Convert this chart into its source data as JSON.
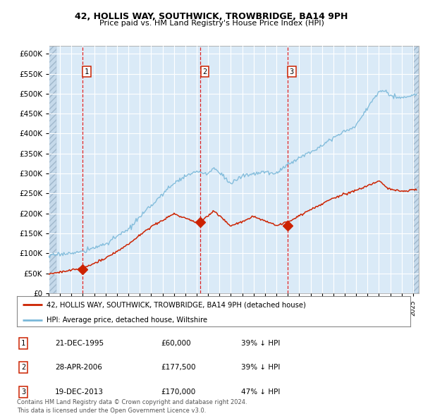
{
  "title1": "42, HOLLIS WAY, SOUTHWICK, TROWBRIDGE, BA14 9PH",
  "title2": "Price paid vs. HM Land Registry's House Price Index (HPI)",
  "xlim_start": 1993.0,
  "xlim_end": 2025.5,
  "ylim": [
    0,
    620000
  ],
  "yticks": [
    0,
    50000,
    100000,
    150000,
    200000,
    250000,
    300000,
    350000,
    400000,
    450000,
    500000,
    550000,
    600000
  ],
  "ytick_labels": [
    "£0",
    "£50K",
    "£100K",
    "£150K",
    "£200K",
    "£250K",
    "£300K",
    "£350K",
    "£400K",
    "£450K",
    "£500K",
    "£550K",
    "£600K"
  ],
  "hpi_color": "#7ab8d9",
  "price_color": "#cc2200",
  "background_color": "#ffffff",
  "plot_bg_color": "#daeaf7",
  "grid_color": "#ffffff",
  "sale_dates": [
    1995.97,
    2006.33,
    2013.97
  ],
  "sale_prices": [
    60000,
    177500,
    170000
  ],
  "sale_labels": [
    "1",
    "2",
    "3"
  ],
  "legend_line1": "42, HOLLIS WAY, SOUTHWICK, TROWBRIDGE, BA14 9PH (detached house)",
  "legend_line2": "HPI: Average price, detached house, Wiltshire",
  "table_data": [
    [
      "1",
      "21-DEC-1995",
      "£60,000",
      "39% ↓ HPI"
    ],
    [
      "2",
      "28-APR-2006",
      "£177,500",
      "39% ↓ HPI"
    ],
    [
      "3",
      "19-DEC-2013",
      "£170,000",
      "47% ↓ HPI"
    ]
  ],
  "footnote": "Contains HM Land Registry data © Crown copyright and database right 2024.\nThis data is licensed under the Open Government Licence v3.0."
}
